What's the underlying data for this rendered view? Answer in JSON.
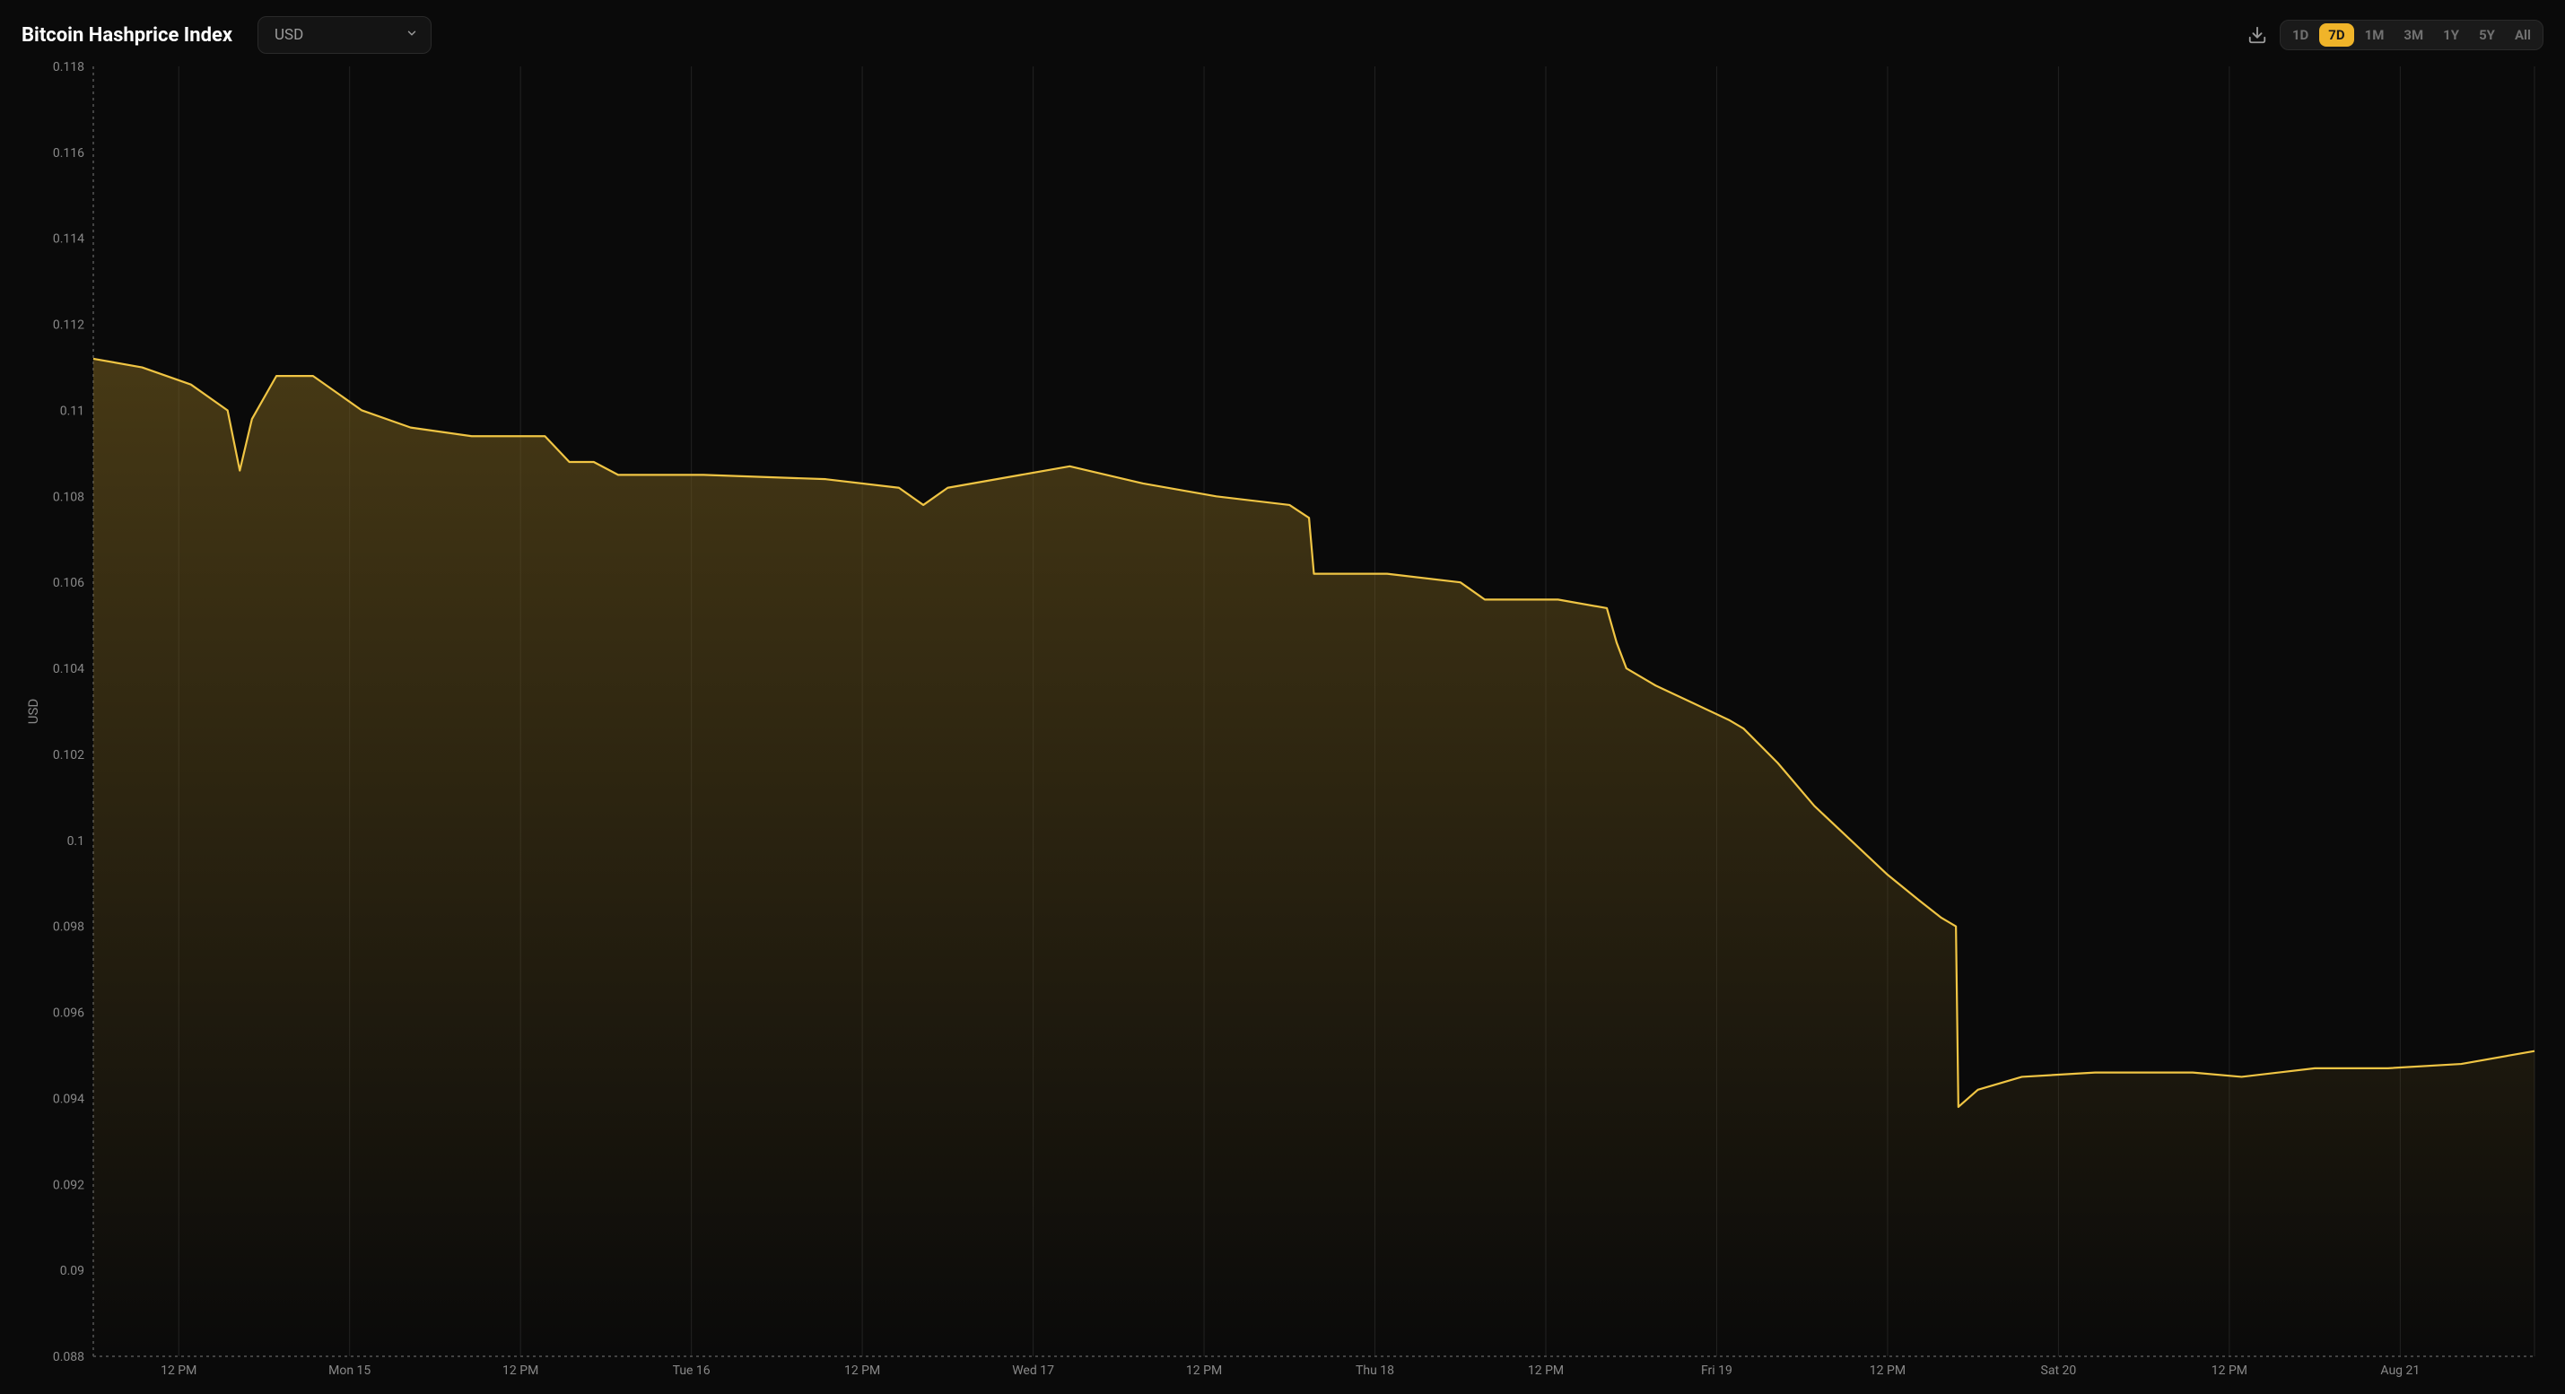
{
  "header": {
    "title": "Bitcoin Hashprice Index",
    "currency_selected": "USD",
    "ranges": [
      "1D",
      "7D",
      "1M",
      "3M",
      "1Y",
      "5Y",
      "All"
    ],
    "range_active": "7D"
  },
  "chart": {
    "type": "area",
    "ylabel": "USD",
    "ylim": [
      0.088,
      0.118
    ],
    "ytick_step": 0.002,
    "yticks": [
      0.088,
      0.09,
      0.092,
      0.094,
      0.096,
      0.098,
      0.1,
      0.102,
      0.104,
      0.106,
      0.108,
      0.11,
      0.112,
      0.114,
      0.116,
      0.118
    ],
    "xticks": [
      {
        "pos": 0.035,
        "label": "12 PM"
      },
      {
        "pos": 0.105,
        "label": "Mon 15"
      },
      {
        "pos": 0.175,
        "label": "12 PM"
      },
      {
        "pos": 0.245,
        "label": "Tue 16"
      },
      {
        "pos": 0.315,
        "label": "12 PM"
      },
      {
        "pos": 0.385,
        "label": "Wed 17"
      },
      {
        "pos": 0.455,
        "label": "12 PM"
      },
      {
        "pos": 0.525,
        "label": "Thu 18"
      },
      {
        "pos": 0.595,
        "label": "12 PM"
      },
      {
        "pos": 0.665,
        "label": "Fri 19"
      },
      {
        "pos": 0.735,
        "label": "12 PM"
      },
      {
        "pos": 0.805,
        "label": "Sat 20"
      },
      {
        "pos": 0.875,
        "label": "12 PM"
      },
      {
        "pos": 0.945,
        "label": "Aug 21"
      }
    ],
    "series": [
      {
        "x": 0.0,
        "y": 0.1112
      },
      {
        "x": 0.02,
        "y": 0.111
      },
      {
        "x": 0.04,
        "y": 0.1106
      },
      {
        "x": 0.055,
        "y": 0.11
      },
      {
        "x": 0.06,
        "y": 0.1086
      },
      {
        "x": 0.065,
        "y": 0.1098
      },
      {
        "x": 0.075,
        "y": 0.1108
      },
      {
        "x": 0.09,
        "y": 0.1108
      },
      {
        "x": 0.11,
        "y": 0.11
      },
      {
        "x": 0.13,
        "y": 0.1096
      },
      {
        "x": 0.155,
        "y": 0.1094
      },
      {
        "x": 0.185,
        "y": 0.1094
      },
      {
        "x": 0.195,
        "y": 0.1088
      },
      {
        "x": 0.205,
        "y": 0.1088
      },
      {
        "x": 0.215,
        "y": 0.1085
      },
      {
        "x": 0.25,
        "y": 0.1085
      },
      {
        "x": 0.3,
        "y": 0.1084
      },
      {
        "x": 0.33,
        "y": 0.1082
      },
      {
        "x": 0.34,
        "y": 0.1078
      },
      {
        "x": 0.35,
        "y": 0.1082
      },
      {
        "x": 0.38,
        "y": 0.1085
      },
      {
        "x": 0.4,
        "y": 0.1087
      },
      {
        "x": 0.43,
        "y": 0.1083
      },
      {
        "x": 0.46,
        "y": 0.108
      },
      {
        "x": 0.49,
        "y": 0.1078
      },
      {
        "x": 0.498,
        "y": 0.1075
      },
      {
        "x": 0.5,
        "y": 0.1062
      },
      {
        "x": 0.53,
        "y": 0.1062
      },
      {
        "x": 0.56,
        "y": 0.106
      },
      {
        "x": 0.57,
        "y": 0.1056
      },
      {
        "x": 0.6,
        "y": 0.1056
      },
      {
        "x": 0.62,
        "y": 0.1054
      },
      {
        "x": 0.624,
        "y": 0.1046
      },
      {
        "x": 0.628,
        "y": 0.104
      },
      {
        "x": 0.64,
        "y": 0.1036
      },
      {
        "x": 0.655,
        "y": 0.1032
      },
      {
        "x": 0.67,
        "y": 0.1028
      },
      {
        "x": 0.676,
        "y": 0.1026
      },
      {
        "x": 0.69,
        "y": 0.1018
      },
      {
        "x": 0.705,
        "y": 0.1008
      },
      {
        "x": 0.72,
        "y": 0.1
      },
      {
        "x": 0.735,
        "y": 0.0992
      },
      {
        "x": 0.748,
        "y": 0.0986
      },
      {
        "x": 0.757,
        "y": 0.0982
      },
      {
        "x": 0.763,
        "y": 0.098
      },
      {
        "x": 0.764,
        "y": 0.0938
      },
      {
        "x": 0.772,
        "y": 0.0942
      },
      {
        "x": 0.79,
        "y": 0.0945
      },
      {
        "x": 0.82,
        "y": 0.0946
      },
      {
        "x": 0.86,
        "y": 0.0946
      },
      {
        "x": 0.88,
        "y": 0.0945
      },
      {
        "x": 0.91,
        "y": 0.0947
      },
      {
        "x": 0.94,
        "y": 0.0947
      },
      {
        "x": 0.97,
        "y": 0.0948
      },
      {
        "x": 0.99,
        "y": 0.095
      },
      {
        "x": 1.0,
        "y": 0.0951
      }
    ],
    "colors": {
      "background": "#0a0a0a",
      "line": "#f0c544",
      "area_top": "rgba(120,95,30,0.55)",
      "area_bottom": "rgba(120,95,30,0.0)",
      "grid": "#222222",
      "axis_dash": "#555555",
      "tick_text": "#888888",
      "title": "#ffffff",
      "select_bg": "#141414",
      "select_border": "#2a2a2a",
      "select_text": "#9b9b9b",
      "range_bg": "#1a1a1a",
      "range_active_bg": "#f0b429",
      "range_active_text": "#1a1a1a",
      "range_inactive_text": "#707070"
    },
    "line_width": 2.2
  }
}
